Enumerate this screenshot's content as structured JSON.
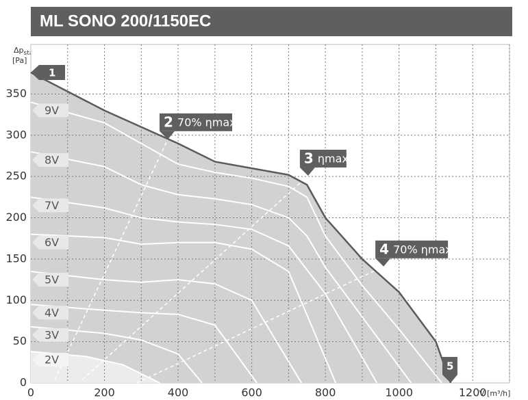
{
  "chart_data": {
    "type": "line",
    "title": "ML SONO 200/1150EC",
    "ylabel": {
      "symbol": "Δp",
      "sub": "stat",
      "unit": "[Pa]"
    },
    "xlabel": {
      "symbol": "V̇",
      "unit": "[m³/h]"
    },
    "xlim": [
      0,
      1300
    ],
    "ylim": [
      0,
      410
    ],
    "xticks": [
      0,
      200,
      400,
      600,
      800,
      1000,
      1200
    ],
    "yticks": [
      0,
      50,
      100,
      150,
      200,
      250,
      300,
      350
    ],
    "xgrid": [
      100,
      200,
      300,
      400,
      500,
      600,
      700,
      800,
      900,
      1000,
      1100,
      1200,
      1300
    ],
    "grid": true,
    "max_curve": {
      "color": "#5a5a5a",
      "fill": "#d2d2d2",
      "x": [
        0,
        200,
        400,
        500,
        600,
        700,
        750,
        800,
        900,
        1000,
        1100,
        1140
      ],
      "y": [
        376,
        330,
        290,
        268,
        260,
        252,
        240,
        200,
        150,
        110,
        50,
        0
      ]
    },
    "series": [
      {
        "name": "9V",
        "color": "#ffffff",
        "x": [
          0,
          200,
          400,
          500,
          600,
          700,
          750,
          800,
          900,
          1000,
          1116
        ],
        "y": [
          340,
          315,
          265,
          255,
          248,
          238,
          225,
          178,
          118,
          65,
          0
        ]
      },
      {
        "name": "8V",
        "color": "#ffffff",
        "x": [
          0,
          200,
          300,
          400,
          500,
          600,
          700,
          750,
          800,
          900,
          1033
        ],
        "y": [
          280,
          262,
          240,
          228,
          223,
          216,
          200,
          178,
          140,
          80,
          0
        ]
      },
      {
        "name": "7V",
        "color": "#ffffff",
        "x": [
          0,
          200,
          300,
          400,
          500,
          600,
          700,
          800,
          940
        ],
        "y": [
          225,
          212,
          200,
          195,
          192,
          186,
          166,
          108,
          0
        ]
      },
      {
        "name": "6V",
        "color": "#ffffff",
        "x": [
          0,
          200,
          300,
          400,
          500,
          600,
          700,
          828
        ],
        "y": [
          180,
          176,
          168,
          170,
          170,
          162,
          135,
          0
        ]
      },
      {
        "name": "5V",
        "color": "#ffffff",
        "x": [
          0,
          200,
          300,
          400,
          500,
          600,
          735
        ],
        "y": [
          135,
          125,
          122,
          125,
          120,
          100,
          0
        ]
      },
      {
        "name": "4V",
        "color": "#ffffff",
        "x": [
          0,
          200,
          300,
          400,
          500,
          614
        ],
        "y": [
          95,
          88,
          85,
          83,
          70,
          0
        ]
      },
      {
        "name": "3V",
        "color": "#ffffff",
        "x": [
          0,
          200,
          300,
          400,
          465
        ],
        "y": [
          68,
          60,
          52,
          35,
          0
        ]
      },
      {
        "name": "2V",
        "color": "#ffffff",
        "fill": "#ececec",
        "x": [
          0,
          150,
          250,
          350
        ],
        "y": [
          38,
          32,
          22,
          0
        ]
      }
    ],
    "efficiency_lines": [
      {
        "x": [
          65,
          372
        ],
        "y": [
          4,
          295
        ]
      },
      {
        "x": [
          140,
          753
        ],
        "y": [
          4,
          251
        ]
      },
      {
        "x": [
          288,
          958
        ],
        "y": [
          0,
          141
        ]
      }
    ],
    "points": [
      {
        "label": "1",
        "x": 0,
        "y": 376
      },
      {
        "label": "2",
        "text": "70% ηmax",
        "x": 372,
        "y": 295
      },
      {
        "label": "3",
        "text": "ηmax",
        "x": 753,
        "y": 251
      },
      {
        "label": "4",
        "text": "70% ηmax",
        "x": 958,
        "y": 141
      },
      {
        "label": "5",
        "x": 1140,
        "y": 0
      }
    ]
  }
}
